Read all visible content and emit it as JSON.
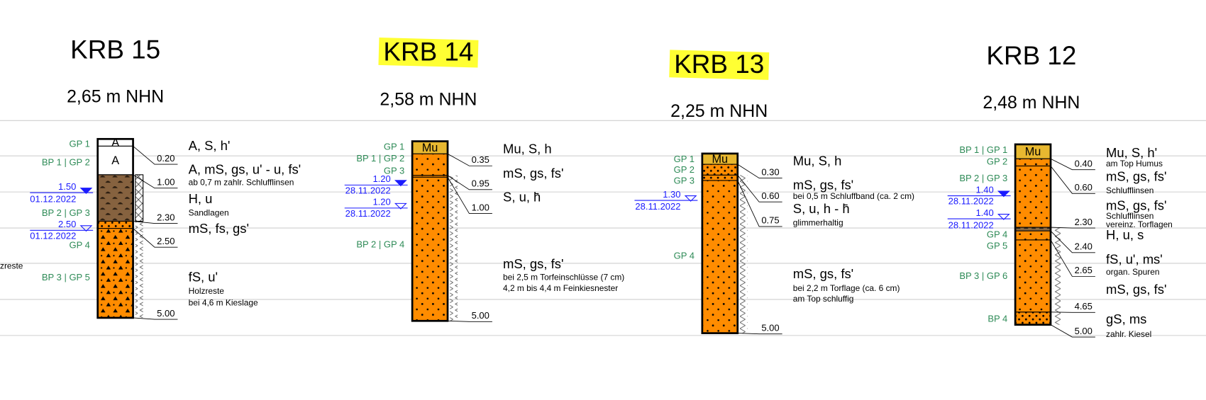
{
  "boreholes": [
    {
      "title": "KRB 15",
      "elevation": "2,65 m NHN",
      "highlight": false,
      "samples": [
        "GP 1",
        "BP 1 | GP 2",
        "BP 2 | GP 3",
        "GP 4",
        "BP 3 | GP 5"
      ],
      "layers": [
        {
          "code": "A",
          "depth": {
            "value": 0.2,
            "label": "0.20"
          },
          "description": "A, S, h'",
          "notes": []
        },
        {
          "code": "A",
          "depth": {
            "value": 1.0,
            "label": "1.00"
          },
          "description": "A, mS, gs, u' - u, fs'",
          "notes": [
            "ab 0,7 m zahlr. Schlufflinsen"
          ]
        },
        {
          "depth": {
            "value": 2.3,
            "label": "2.30"
          },
          "description": "H, u",
          "notes": [
            "Sandlagen"
          ]
        },
        {
          "depth": {
            "value": 2.5,
            "label": "2.50"
          },
          "description": "mS, fs, gs'",
          "notes": []
        },
        {
          "depth": {
            "value": 5.0,
            "label": "5.00"
          },
          "description": "fS, u'",
          "notes": [
            "Holzreste",
            "bei 4,6 m Kieslage"
          ]
        }
      ],
      "water": [
        {
          "depth": {
            "value": 1.5,
            "label": "1.50"
          },
          "date": "01.12.2022"
        },
        {
          "depth": {
            "value": 2.5,
            "label": "2.50"
          },
          "date": "01.12.2022"
        }
      ]
    },
    {
      "title": "KRB 14",
      "elevation": "2,58 m NHN",
      "highlight": true,
      "samples": [
        "GP 1",
        "BP 1 | GP 2",
        "GP 3",
        "BP 2 | GP 4"
      ],
      "layers": [
        {
          "code": "Mu",
          "depth": {
            "value": 0.35,
            "label": "0.35"
          },
          "description": "Mu, S, h",
          "notes": []
        },
        {
          "depth": {
            "value": 0.95,
            "label": "0.95"
          },
          "description": "mS, gs, fs'",
          "notes": []
        },
        {
          "depth": {
            "value": 1.0,
            "label": "1.00"
          },
          "description": "S, u, h̄",
          "notes": []
        },
        {
          "depth": {
            "value": 5.0,
            "label": "5.00"
          },
          "description": "mS, gs, fs'",
          "notes": [
            "bei 2,5 m Torfeinschlüsse (7 cm)",
            "4,2 m bis 4,4 m Feinkiesnester"
          ]
        }
      ],
      "water": [
        {
          "depth": {
            "value": 1.2,
            "label": "1.20"
          },
          "date": "28.11.2022"
        },
        {
          "depth": {
            "value": 1.2,
            "label": "1.20"
          },
          "date": "28.11.2022"
        }
      ]
    },
    {
      "title": "KRB 13",
      "elevation": "2,25 m NHN",
      "highlight": true,
      "samples": [
        "GP 1",
        "GP 2",
        "GP 3",
        "GP 4"
      ],
      "layers": [
        {
          "code": "Mu",
          "depth": {
            "value": 0.3,
            "label": "0.30"
          },
          "description": "Mu, S, h",
          "notes": []
        },
        {
          "depth": {
            "value": 0.6,
            "label": "0.60"
          },
          "description": "mS, gs, fs'",
          "notes": [
            "bei 0,5 m Schluffband (ca. 2 cm)"
          ]
        },
        {
          "depth": {
            "value": 0.75,
            "label": "0.75"
          },
          "description": "S, u, h - h̄",
          "notes": [
            "glimmerhaltig"
          ]
        },
        {
          "depth": {
            "value": 5.0,
            "label": "5.00"
          },
          "description": "mS, gs, fs'",
          "notes": [
            "bei 2,2 m Torflage (ca. 6 cm)",
            "am Top schluffig"
          ]
        }
      ],
      "water": [
        {
          "depth": {
            "value": 1.3,
            "label": "1.30"
          },
          "date": "28.11.2022"
        }
      ]
    },
    {
      "title": "KRB 12",
      "elevation": "2,48 m NHN",
      "highlight": false,
      "samples": [
        "BP 1 | GP 1",
        "GP 2",
        "BP 2 | GP 3",
        "GP 4",
        "GP 5",
        "BP 3 | GP 6",
        "BP 4"
      ],
      "layers": [
        {
          "code": "Mu",
          "depth": {
            "value": 0.4,
            "label": "0.40"
          },
          "description": "Mu, S, h'",
          "notes": [
            "am Top Humus"
          ]
        },
        {
          "depth": {
            "value": 0.6,
            "label": "0.60"
          },
          "description": "mS, gs, fs'",
          "notes": [
            "Schlufflinsen"
          ]
        },
        {
          "depth": {
            "value": 2.3,
            "label": "2.30"
          },
          "description": "mS, gs, fs'",
          "notes": [
            "Schlufflinsen",
            "vereinz. Torflagen"
          ]
        },
        {
          "depth": {
            "value": 2.4,
            "label": "2.40"
          },
          "description": "H, u, s",
          "notes": []
        },
        {
          "depth": {
            "value": 2.65,
            "label": "2.65"
          },
          "description": "fS, u', ms'",
          "notes": [
            "organ. Spuren"
          ]
        },
        {
          "depth": {
            "value": 4.65,
            "label": "4.65"
          },
          "description": "mS, gs, fs'",
          "notes": []
        },
        {
          "depth": {
            "value": 5.0,
            "label": "5.00"
          },
          "description": "gS, ms",
          "notes": [
            "zahlr. Kiesel"
          ]
        }
      ],
      "water": [
        {
          "depth": {
            "value": 1.4,
            "label": "1.40"
          },
          "date": "28.11.2022"
        },
        {
          "depth": {
            "value": 1.4,
            "label": "1.40"
          },
          "date": "28.11.2022"
        }
      ]
    }
  ],
  "fragments": [
    "zreste"
  ]
}
